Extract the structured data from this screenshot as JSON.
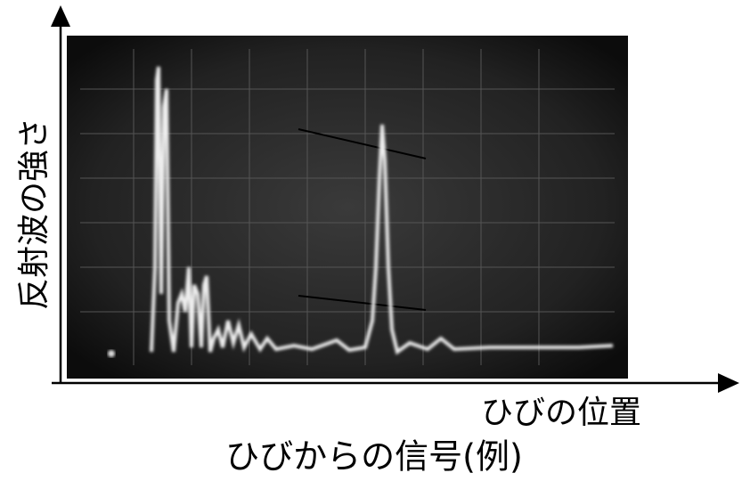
{
  "figure": {
    "y_axis_label": "反射波の強さ",
    "x_axis_label": "ひびの位置",
    "caption": "ひびからの信号(例)"
  }
}
